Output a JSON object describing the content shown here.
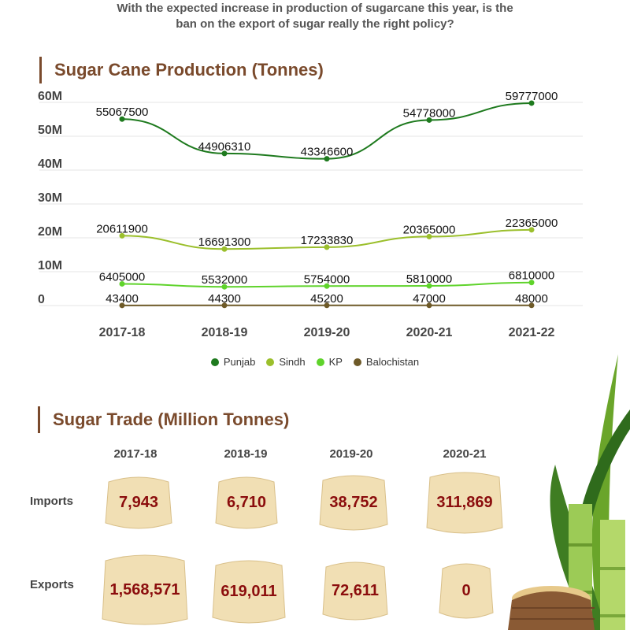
{
  "intro": {
    "line1": "With the expected increase in production of sugarcane this year, is the",
    "line2": "ban on the export of sugar really the right policy?"
  },
  "production_title": "Sugar Cane Production (Tonnes)",
  "trade_title": "Sugar Trade (Million Tonnes)",
  "colors": {
    "accent": "#7a4a2c",
    "punjab": "#1e7a1e",
    "sindh": "#9bbf2c",
    "kp": "#5fd32b",
    "balochistan": "#6e5a28",
    "value_text": "#8b0d0d",
    "cube": "#f1dfb4"
  },
  "legend": [
    {
      "name": "Punjab",
      "color": "#1e7a1e"
    },
    {
      "name": "Sindh",
      "color": "#9bbf2c"
    },
    {
      "name": "KP",
      "color": "#5fd32b"
    },
    {
      "name": "Balochistan",
      "color": "#6e5a28"
    }
  ],
  "trade": {
    "years": [
      "2017-18",
      "2018-19",
      "2019-20",
      "2020-21"
    ],
    "imports_label": "Imports",
    "exports_label": "Exports",
    "imports": [
      "7,943",
      "6,710",
      "38,752",
      "311,869"
    ],
    "exports": [
      "1,568,571",
      "619,011",
      "72,611",
      "0"
    ]
  },
  "chart_data": [
    {
      "type": "line",
      "title": "Sugar Cane Production (Tonnes)",
      "x": [
        "2017-18",
        "2018-19",
        "2019-20",
        "2020-21",
        "2021-22"
      ],
      "yticks": [
        "0",
        "10M",
        "20M",
        "30M",
        "40M",
        "50M",
        "60M"
      ],
      "ylim": [
        0,
        60000000
      ],
      "grid": true,
      "legend_position": "bottom",
      "series": [
        {
          "name": "Punjab",
          "values": [
            55067500,
            44906310,
            43346600,
            54778000,
            59777000
          ]
        },
        {
          "name": "Sindh",
          "values": [
            20611900,
            16691300,
            17233830,
            20365000,
            22365000
          ]
        },
        {
          "name": "KP",
          "values": [
            6405000,
            5532000,
            5754000,
            5810000,
            6810000
          ]
        },
        {
          "name": "Balochistan",
          "values": [
            43400,
            44300,
            45200,
            47000,
            48000
          ]
        }
      ]
    },
    {
      "type": "table",
      "title": "Sugar Trade (Million Tonnes)",
      "columns": [
        "2017-18",
        "2018-19",
        "2019-20",
        "2020-21"
      ],
      "rows": [
        {
          "label": "Imports",
          "values": [
            7943,
            6710,
            38752,
            311869
          ]
        },
        {
          "label": "Exports",
          "values": [
            1568571,
            619011,
            72611,
            0
          ]
        }
      ]
    }
  ]
}
